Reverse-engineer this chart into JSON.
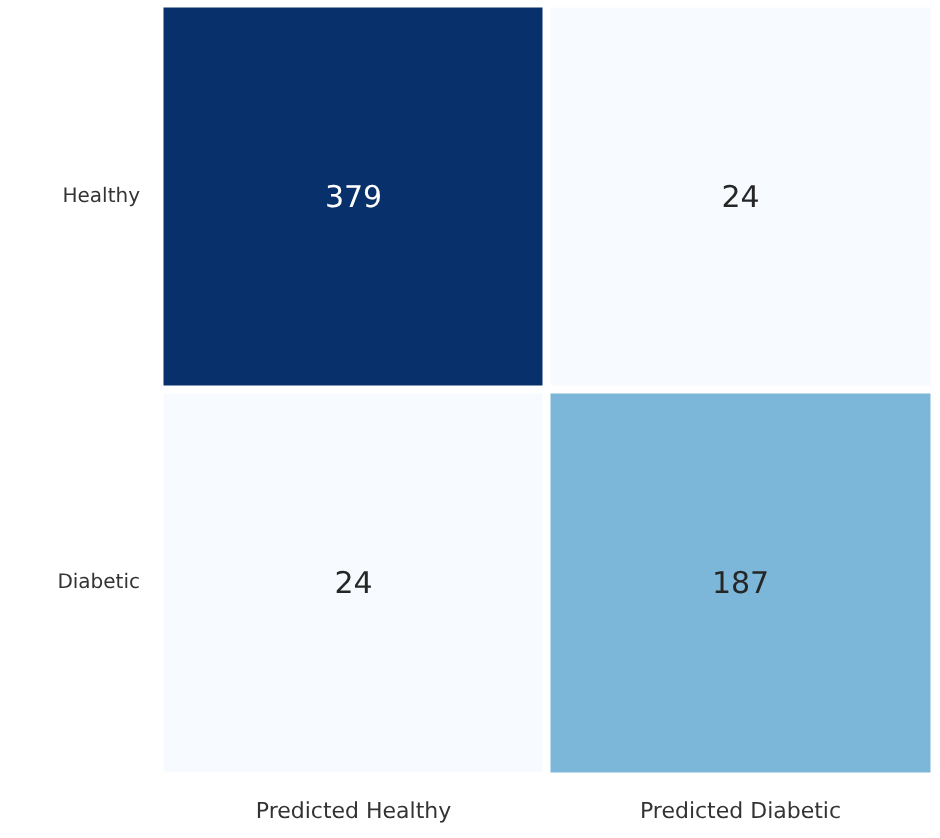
{
  "chart_data": {
    "type": "heatmap",
    "categories": [
      "Predicted Healthy",
      "Predicted Diabetic"
    ],
    "y_categories": [
      "Healthy",
      "Diabetic"
    ],
    "cells": [
      [
        379,
        24
      ],
      [
        24,
        187
      ]
    ],
    "colors": [
      "#f7fbff",
      "#deebf7",
      "#c6dbef",
      "#9ecae1",
      "#6baed6",
      "#4292c6",
      "#2171b5",
      "#08519c",
      "#08306b"
    ],
    "data_labels": true
  }
}
